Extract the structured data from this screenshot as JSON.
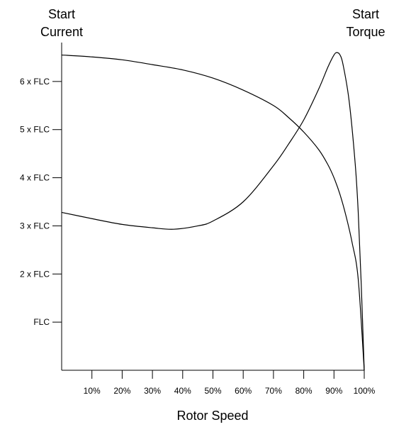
{
  "chart_data": {
    "type": "line",
    "title": "",
    "left_label_lines": [
      "Start",
      "Current"
    ],
    "right_label_lines": [
      "Start",
      "Torque"
    ],
    "xlabel": "Rotor Speed",
    "ylabel": "",
    "xlim": [
      0,
      100
    ],
    "ylim": [
      0,
      7
    ],
    "x_ticks": [
      10,
      20,
      30,
      40,
      50,
      60,
      70,
      80,
      90,
      100
    ],
    "x_tick_labels": [
      "10%",
      "20%",
      "30%",
      "40%",
      "50%",
      "60%",
      "70%",
      "80%",
      "90%",
      "100%"
    ],
    "y_ticks": [
      1,
      2,
      3,
      4,
      5,
      6
    ],
    "y_tick_labels": [
      "FLC",
      "2 x FLC",
      "3 x FLC",
      "4 x FLC",
      "5 x FLC",
      "6 x FLC"
    ],
    "grid": false,
    "legend": "none",
    "series": [
      {
        "id": "current",
        "x": [
          0,
          10,
          20,
          30,
          40,
          50,
          60,
          70,
          75,
          80,
          85,
          88,
          90,
          92,
          94,
          96,
          98,
          100
        ],
        "y": [
          6.55,
          6.51,
          6.45,
          6.35,
          6.24,
          6.07,
          5.82,
          5.5,
          5.25,
          4.95,
          4.58,
          4.27,
          4.0,
          3.65,
          3.2,
          2.65,
          1.9,
          0
        ]
      },
      {
        "id": "torque",
        "x": [
          0,
          10,
          20,
          30,
          37,
          45,
          50,
          60,
          70,
          75,
          80,
          85,
          88,
          90,
          91,
          92,
          93,
          95,
          97,
          98,
          99,
          100
        ],
        "y": [
          3.28,
          3.15,
          3.03,
          2.96,
          2.93,
          3.0,
          3.1,
          3.5,
          4.25,
          4.7,
          5.2,
          5.85,
          6.3,
          6.55,
          6.6,
          6.55,
          6.35,
          5.6,
          4.3,
          3.3,
          1.8,
          0
        ]
      }
    ]
  }
}
